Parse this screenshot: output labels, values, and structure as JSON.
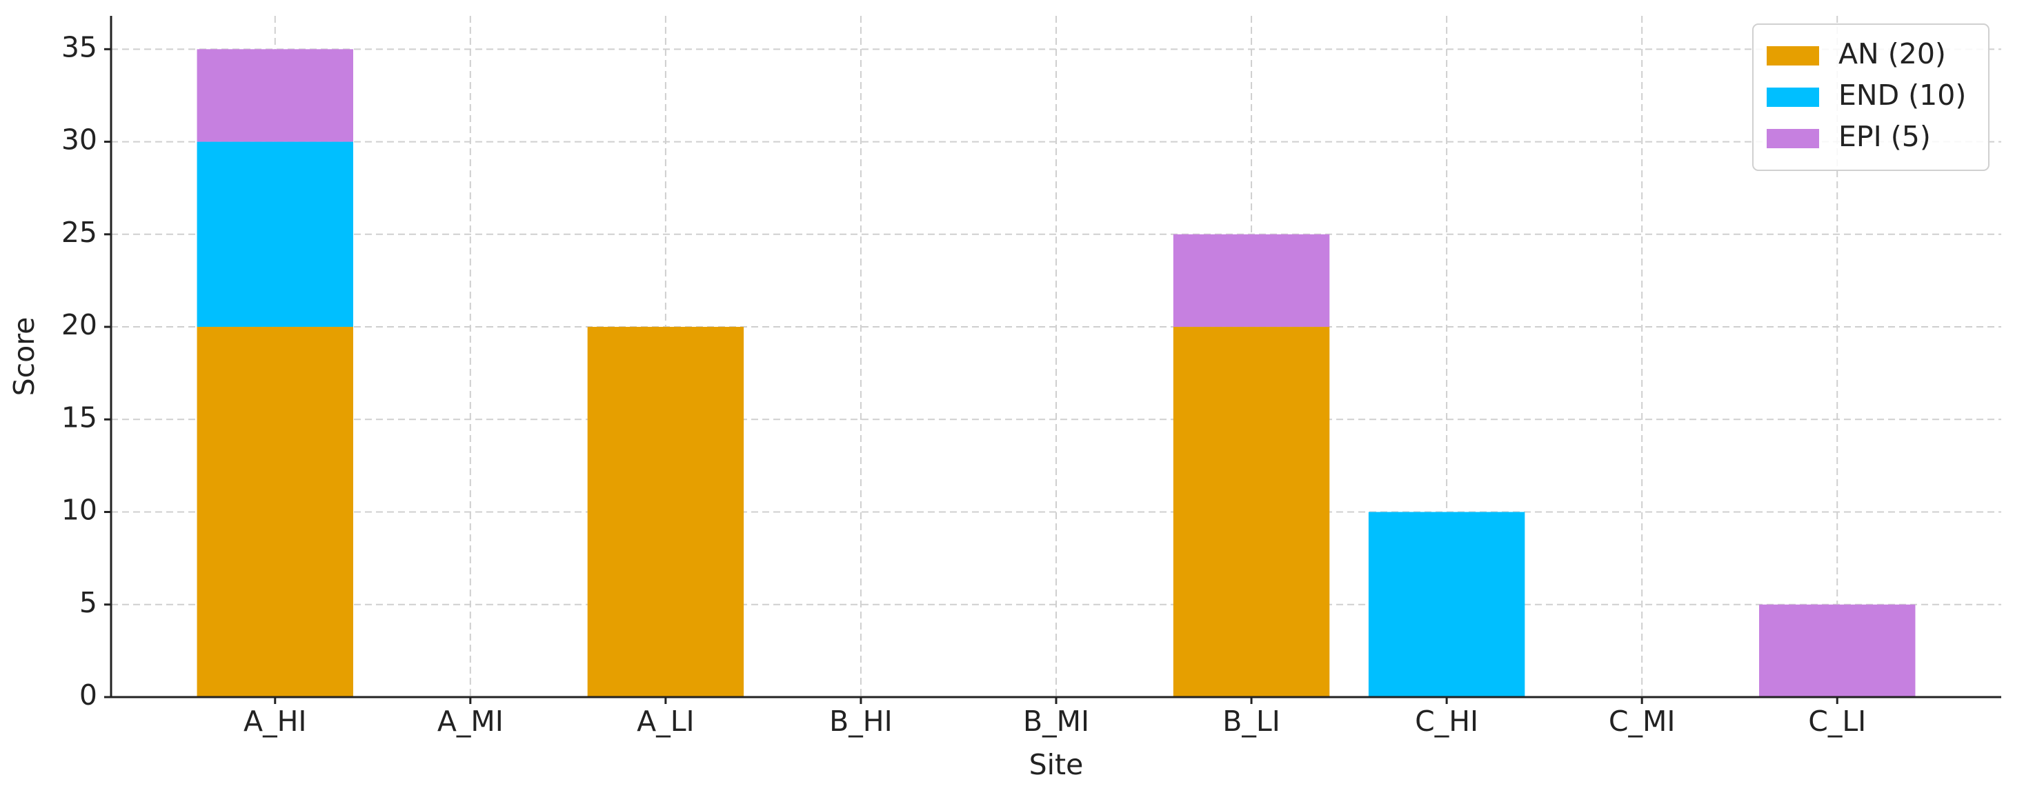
{
  "chart_data": {
    "type": "stacked_bar",
    "x_label": "Site",
    "y_label": "Score",
    "categories": [
      "A_HI",
      "A_MI",
      "A_LI",
      "B_HI",
      "B_MI",
      "B_LI",
      "C_HI",
      "C_MI",
      "C_LI"
    ],
    "series": [
      {
        "name": "AN (20)",
        "color": "#e69f00",
        "values": [
          20,
          0,
          20,
          0,
          0,
          20,
          0,
          0,
          0
        ]
      },
      {
        "name": "END (10)",
        "color": "#00bfff",
        "values": [
          10,
          0,
          0,
          0,
          0,
          0,
          10,
          0,
          0
        ]
      },
      {
        "name": "EPI (5)",
        "color": "#c680e0",
        "values": [
          5,
          0,
          0,
          0,
          0,
          5,
          0,
          0,
          5
        ]
      }
    ],
    "ylim": [
      0,
      36.8
    ],
    "yticks": [
      0,
      5,
      10,
      15,
      20,
      25,
      30,
      35
    ],
    "grid": true,
    "legend": "upper right"
  }
}
